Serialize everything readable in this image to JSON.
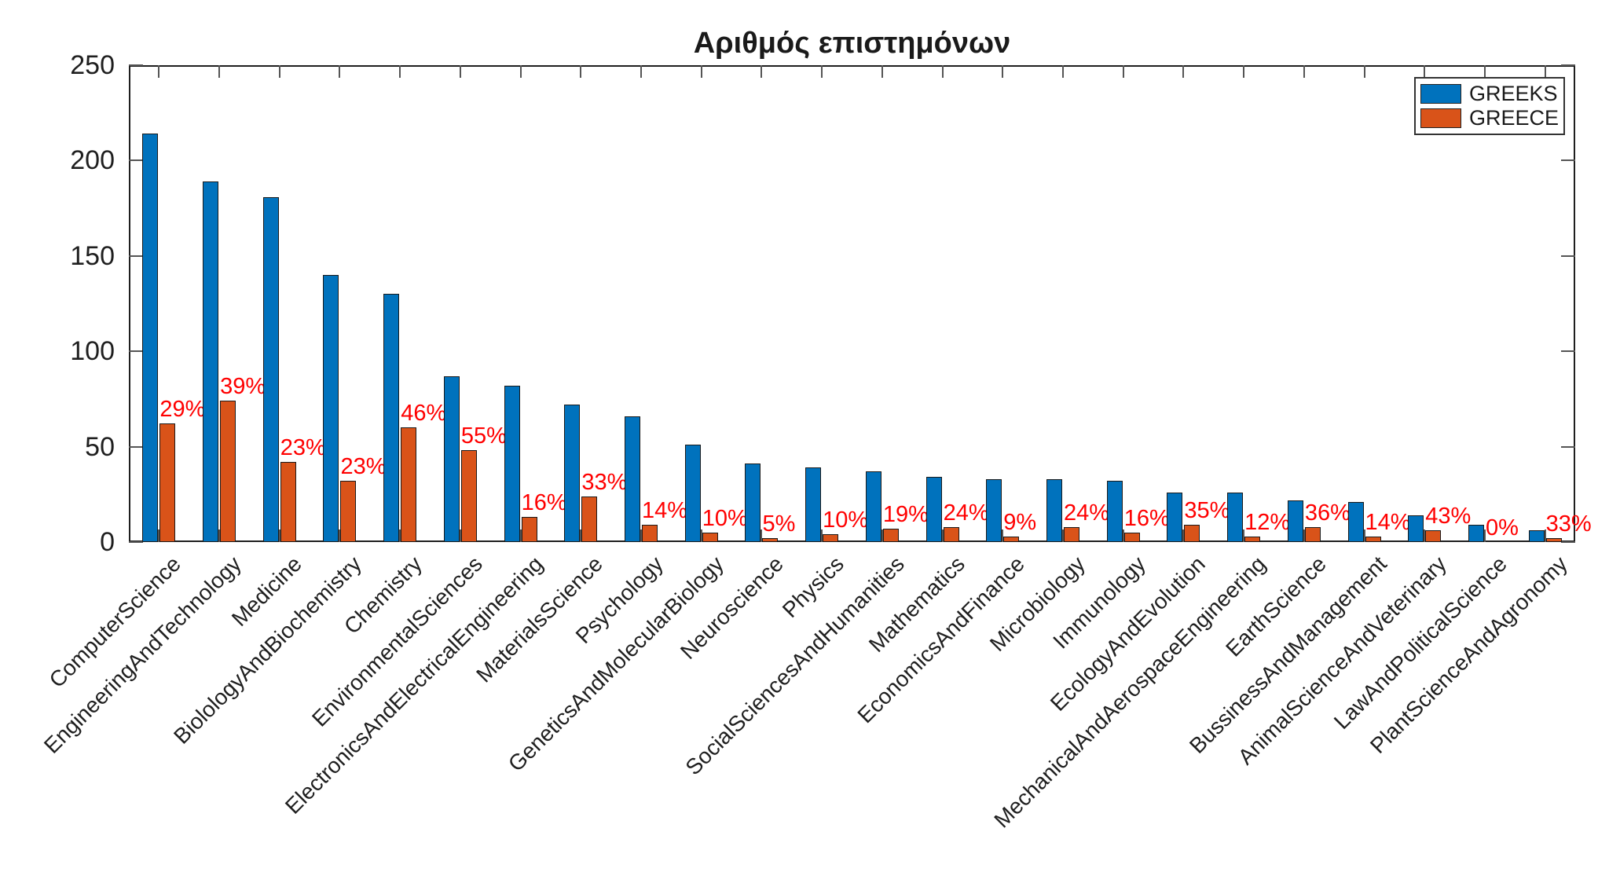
{
  "title": "Αριθμός επιστημόνων",
  "axes": {
    "y_ticks": [
      0,
      50,
      100,
      150,
      200,
      250
    ],
    "ylim": [
      0,
      250
    ]
  },
  "chart_data": {
    "type": "bar",
    "title": "Αριθμός επιστημόνων",
    "categories": [
      "ComputerScience",
      "EngineeringAndTechnology",
      "Medicine",
      "BiolologyAndBiochemistry",
      "Chemistry",
      "EnvironmentalSciences",
      "ElectronicsAndElectricalEngineering",
      "MaterialsScience",
      "Psychology",
      "GeneticsAndMolecularBiology",
      "Neuroscience",
      "Physics",
      "SocialSciencesAndHumanities",
      "Mathematics",
      "EconomicsAndFinance",
      "Microbiology",
      "Immunology",
      "EcologyAndEvolution",
      "MechanicalAndAerospaceEngineering",
      "EarthScience",
      "BussinessAndManagement",
      "AnimalScienceAndVeterinary",
      "LawAndPoliticalScience",
      "PlantScienceAndAgronomy"
    ],
    "series": [
      {
        "name": "GREEKS",
        "color": "#0072BD",
        "values": [
          214,
          189,
          181,
          140,
          130,
          87,
          82,
          72,
          66,
          51,
          41,
          39,
          37,
          34,
          33,
          33,
          32,
          26,
          26,
          22,
          21,
          14,
          9,
          6
        ]
      },
      {
        "name": "GREECE",
        "color": "#D95319",
        "values": [
          62,
          74,
          42,
          32,
          60,
          48,
          13,
          24,
          9,
          5,
          2,
          4,
          7,
          8,
          3,
          8,
          5,
          9,
          3,
          8,
          3,
          6,
          0,
          2
        ]
      }
    ],
    "bar_labels": [
      "29%",
      "39%",
      "23%",
      "23%",
      "46%",
      "55%",
      "16%",
      "33%",
      "14%",
      "10%",
      "5%",
      "10%",
      "19%",
      "24%",
      "9%",
      "24%",
      "16%",
      "35%",
      "12%",
      "36%",
      "14%",
      "43%",
      "0%",
      "33%"
    ],
    "bar_label_color": "#FF0000",
    "ylim": [
      0,
      250
    ],
    "grid": false,
    "legend_position": "top-right"
  }
}
